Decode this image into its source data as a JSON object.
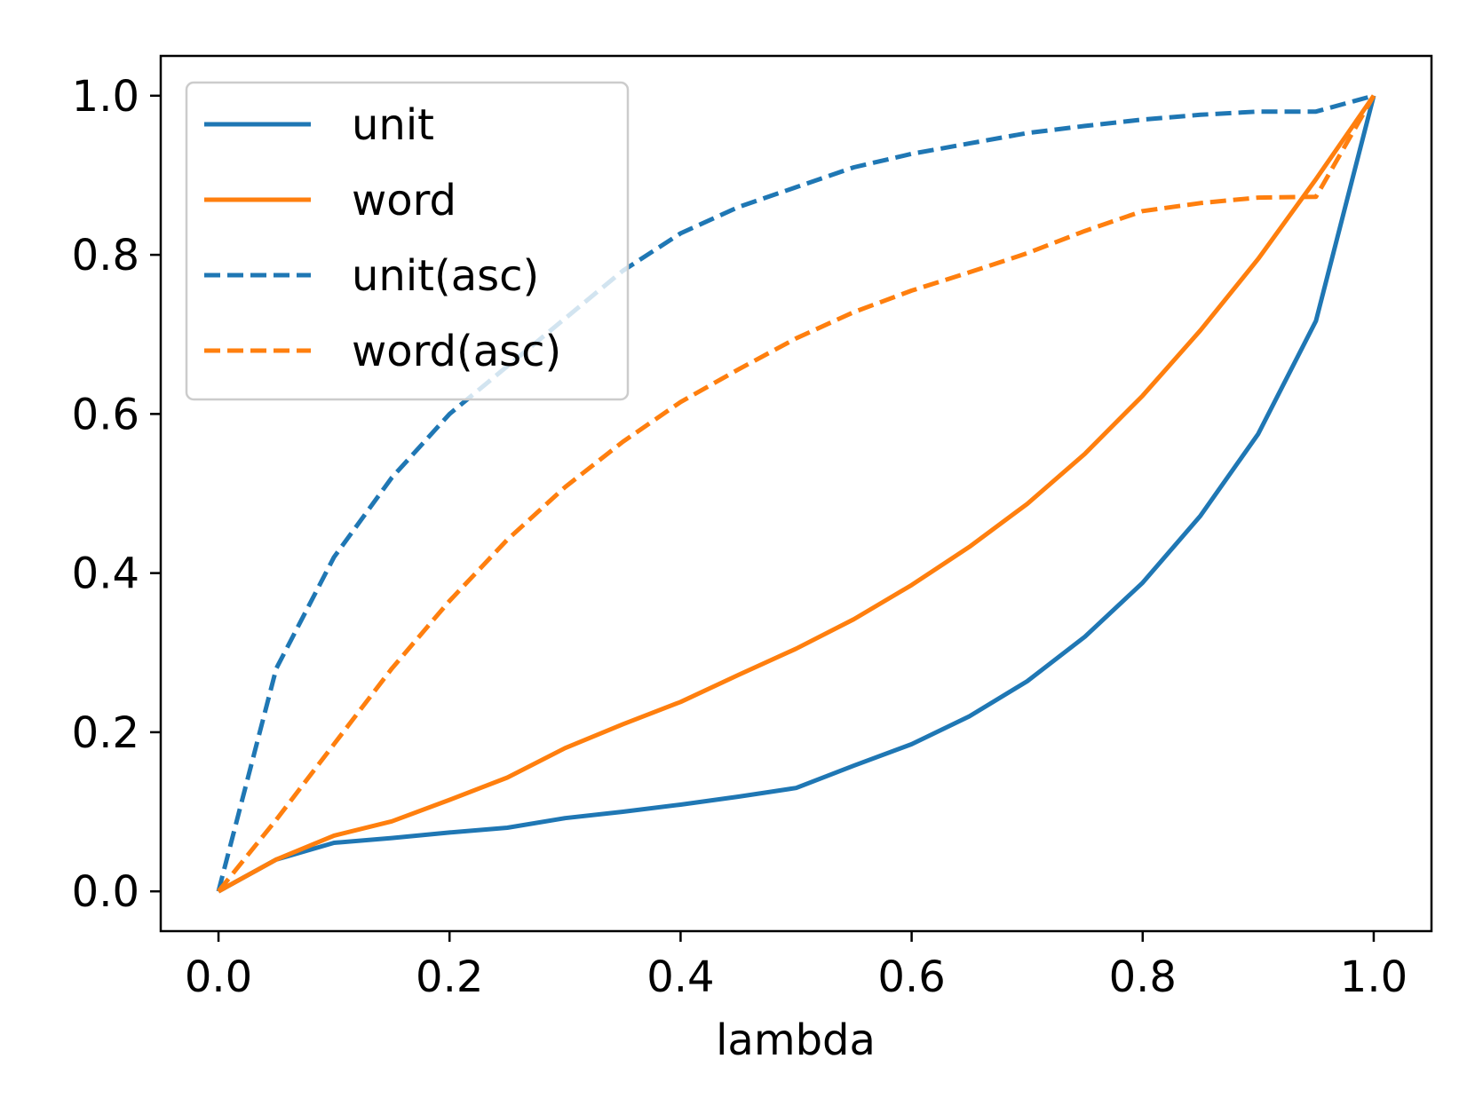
{
  "chart_data": {
    "type": "line",
    "title": "",
    "xlabel": "lambda",
    "ylabel": "",
    "xlim": [
      -0.05,
      1.05
    ],
    "ylim": [
      -0.05,
      1.05
    ],
    "xticks": [
      0.0,
      0.2,
      0.4,
      0.6,
      0.8,
      1.0
    ],
    "xtick_labels": [
      "0.0",
      "0.2",
      "0.4",
      "0.6",
      "0.8",
      "1.0"
    ],
    "yticks": [
      0.0,
      0.2,
      0.4,
      0.6,
      0.8,
      1.0
    ],
    "ytick_labels": [
      "0.0",
      "0.2",
      "0.4",
      "0.6",
      "0.8",
      "1.0"
    ],
    "grid": false,
    "legend_position": "top-left",
    "x": [
      0.0,
      0.05,
      0.1,
      0.15,
      0.2,
      0.25,
      0.3,
      0.35,
      0.4,
      0.45,
      0.5,
      0.55,
      0.6,
      0.65,
      0.7,
      0.75,
      0.8,
      0.85,
      0.9,
      0.95,
      1.0
    ],
    "series": [
      {
        "name": "unit",
        "color": "#1f77b4",
        "style": "solid",
        "values": [
          0.0,
          0.04,
          0.061,
          0.067,
          0.074,
          0.08,
          0.092,
          0.1,
          0.109,
          0.119,
          0.13,
          0.158,
          0.185,
          0.22,
          0.264,
          0.32,
          0.388,
          0.472,
          0.575,
          0.717,
          1.0
        ]
      },
      {
        "name": "word",
        "color": "#ff7f0e",
        "style": "solid",
        "values": [
          0.0,
          0.04,
          0.07,
          0.088,
          0.115,
          0.143,
          0.18,
          0.21,
          0.238,
          0.272,
          0.305,
          0.342,
          0.385,
          0.433,
          0.487,
          0.55,
          0.623,
          0.705,
          0.795,
          0.895,
          1.0
        ]
      },
      {
        "name": "unit(asc)",
        "color": "#1f77b4",
        "style": "dashed",
        "values": [
          0.0,
          0.28,
          0.42,
          0.52,
          0.6,
          0.66,
          0.72,
          0.78,
          0.827,
          0.86,
          0.885,
          0.91,
          0.927,
          0.94,
          0.953,
          0.962,
          0.97,
          0.976,
          0.98,
          0.98,
          1.0
        ]
      },
      {
        "name": "word(asc)",
        "color": "#ff7f0e",
        "style": "dashed",
        "values": [
          0.0,
          0.09,
          0.185,
          0.28,
          0.365,
          0.442,
          0.508,
          0.565,
          0.615,
          0.656,
          0.695,
          0.728,
          0.755,
          0.778,
          0.802,
          0.83,
          0.855,
          0.865,
          0.872,
          0.873,
          1.0
        ]
      }
    ]
  }
}
